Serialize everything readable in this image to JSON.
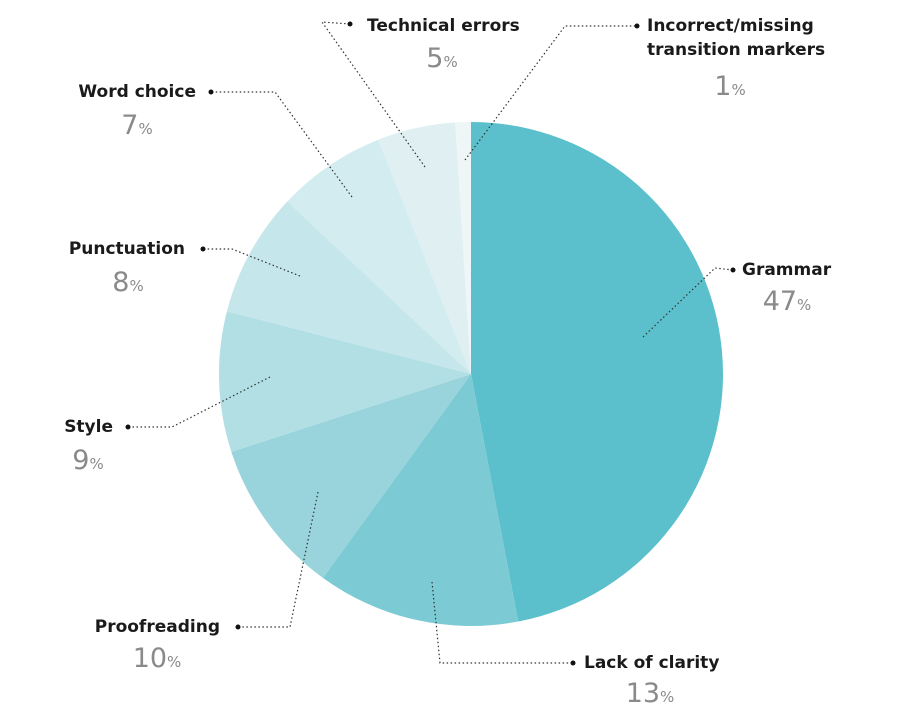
{
  "chart_data": {
    "type": "pie",
    "categories": [
      "Grammar",
      "Lack of clarity",
      "Proofreading",
      "Style",
      "Punctuation",
      "Word choice",
      "Technical errors",
      "Incorrect/missing transition markers"
    ],
    "values": [
      47,
      13,
      10,
      9,
      8,
      7,
      5,
      1
    ],
    "value_labels": [
      "47%",
      "13%",
      "10%",
      "9%",
      "8%",
      "7%",
      "5%",
      "1%"
    ],
    "colors": [
      "#5bc0cc",
      "#7ccad4",
      "#99d4dc",
      "#b2dfe4",
      "#c5e6ea",
      "#d3ecef",
      "#dfeff2",
      "#eef6f7"
    ]
  }
}
